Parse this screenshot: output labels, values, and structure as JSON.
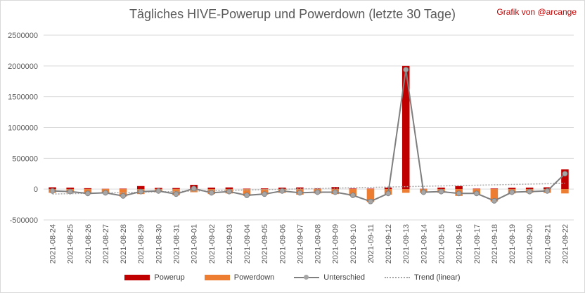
{
  "header": {
    "title": "Tägliches HIVE-Powerup und Powerdown (letzte 30 Tage)",
    "credit": "Grafik von @arcange"
  },
  "legend": {
    "powerup": "Powerup",
    "powerdown": "Powerdown",
    "net": "Unterschied",
    "trend": "Trend (linear)"
  },
  "chart_data": {
    "type": "bar",
    "title": "Tägliches HIVE-Powerup und Powerdown (letzte 30 Tage)",
    "ylim": [
      -500000,
      2500000
    ],
    "yticks": [
      -500000,
      0,
      500000,
      1000000,
      1500000,
      2000000,
      2500000
    ],
    "grid": true,
    "legend_position": "bottom",
    "categories": [
      "2021-08-24",
      "2021-08-25",
      "2021-08-26",
      "2021-08-27",
      "2021-08-28",
      "2021-08-29",
      "2021-08-30",
      "2021-08-31",
      "2021-09-01",
      "2021-09-02",
      "2021-09-03",
      "2021-09-04",
      "2021-09-05",
      "2021-09-06",
      "2021-09-07",
      "2021-09-08",
      "2021-09-09",
      "2021-09-10",
      "2021-09-11",
      "2021-09-12",
      "2021-09-13",
      "2021-09-14",
      "2021-09-15",
      "2021-09-16",
      "2021-09-17",
      "2021-09-18",
      "2021-09-19",
      "2021-09-20",
      "2021-09-21",
      "2021-09-22"
    ],
    "series": [
      {
        "name": "Powerup",
        "type": "bar",
        "color": "#c00000",
        "values": [
          30000,
          25000,
          15000,
          5000,
          8000,
          50000,
          20000,
          18000,
          70000,
          25000,
          28000,
          8000,
          12000,
          25000,
          28000,
          12000,
          35000,
          10000,
          8000,
          25000,
          2000000,
          5000,
          25000,
          50000,
          8000,
          10000,
          22000,
          25000,
          30000,
          320000
        ]
      },
      {
        "name": "Powerdown",
        "type": "bar",
        "color": "#ed7d31",
        "values": [
          -60000,
          -60000,
          -80000,
          -60000,
          -120000,
          -80000,
          -50000,
          -100000,
          -50000,
          -80000,
          -70000,
          -110000,
          -90000,
          -60000,
          -90000,
          -70000,
          -80000,
          -110000,
          -210000,
          -90000,
          -60000,
          -60000,
          -60000,
          -110000,
          -80000,
          -200000,
          -70000,
          -60000,
          -60000,
          -70000
        ]
      },
      {
        "name": "Unterschied",
        "type": "line",
        "color": "#7f7f7f",
        "values": [
          -30000,
          -40000,
          -70000,
          -60000,
          -110000,
          -40000,
          -30000,
          -80000,
          10000,
          -60000,
          -40000,
          -100000,
          -80000,
          -30000,
          -60000,
          -50000,
          -50000,
          -100000,
          -200000,
          -70000,
          1940000,
          -50000,
          -40000,
          -70000,
          -70000,
          -190000,
          -50000,
          -40000,
          -30000,
          250000
        ]
      },
      {
        "name": "Trend (linear)",
        "type": "line",
        "color": "#a6a6a6",
        "values": [
          -80000,
          -74000,
          -68000,
          -62000,
          -56000,
          -50000,
          -44000,
          -38000,
          -32000,
          -26000,
          -20000,
          -14000,
          -8000,
          -2000,
          4000,
          10000,
          16000,
          22000,
          28000,
          34000,
          40000,
          46000,
          52000,
          58000,
          64000,
          70000,
          76000,
          82000,
          88000,
          94000
        ]
      }
    ]
  }
}
